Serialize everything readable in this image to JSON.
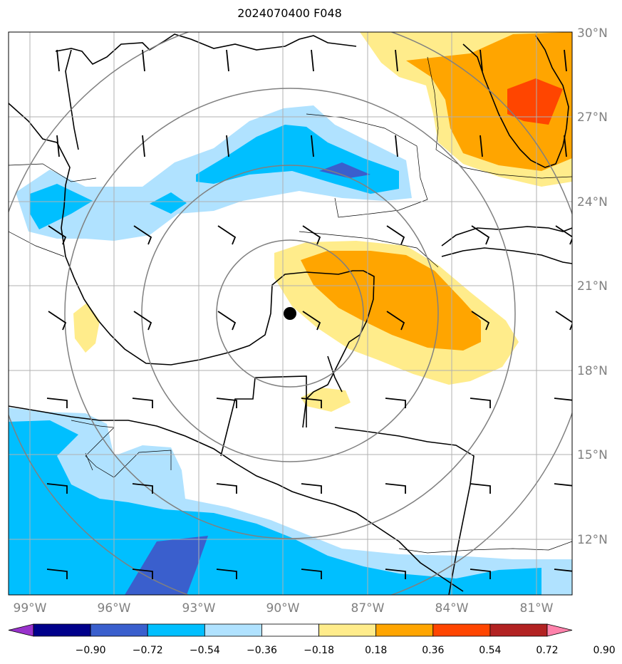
{
  "title": "2024070400 F048",
  "map": {
    "extent": {
      "lon": [
        -100.2,
        -80.0
      ],
      "lat": [
        10.0,
        30.0
      ]
    },
    "lat_ticks": [
      {
        "value": 30,
        "label": "30°N"
      },
      {
        "value": 27,
        "label": "27°N"
      },
      {
        "value": 24,
        "label": "24°N"
      },
      {
        "value": 21,
        "label": "21°N"
      },
      {
        "value": 18,
        "label": "18°N"
      },
      {
        "value": 15,
        "label": "15°N"
      },
      {
        "value": 12,
        "label": "12°N"
      }
    ],
    "lon_ticks": [
      {
        "value": -99,
        "label": "99°W"
      },
      {
        "value": -96,
        "label": "96°W"
      },
      {
        "value": -93,
        "label": "93°W"
      },
      {
        "value": -90,
        "label": "90°W"
      },
      {
        "value": -87,
        "label": "87°W"
      },
      {
        "value": -84,
        "label": "84°W"
      },
      {
        "value": -81,
        "label": "81°W"
      }
    ],
    "gridlines": true,
    "center_marker": {
      "lon": -89.8,
      "lat": 19.9
    },
    "range_rings_deg": [
      3,
      6,
      9,
      12
    ],
    "range_ring_color": "#808080",
    "wind_barbs": "regular grid of black barbs",
    "shading_palette": {
      "lt_-0.90": "#9932cc",
      "-0.90_-0.72": "#00008b",
      "-0.72_-0.54": "#3a5fcd",
      "-0.54_-0.36": "#00bfff",
      "-0.36_-0.18": "#b0e2ff",
      "-0.18_0.18": "#ffffff",
      "0.18_0.36": "#ffec8b",
      "0.36_0.54": "#ffa500",
      "0.54_0.72": "#ff4500",
      "0.72_0.90": "#b22222",
      "gt_0.90": "#ff82ab"
    }
  },
  "colorbar": {
    "colors": [
      "#9932cc",
      "#00008b",
      "#3a5fcd",
      "#00bfff",
      "#b0e2ff",
      "#ffffff",
      "#ffec8b",
      "#ffa500",
      "#ff4500",
      "#b22222",
      "#ff82ab"
    ],
    "labels": [
      "−0.90",
      "−0.72",
      "−0.54",
      "−0.36",
      "−0.18",
      "0.18",
      "0.36",
      "0.54",
      "0.72",
      "0.90"
    ]
  }
}
